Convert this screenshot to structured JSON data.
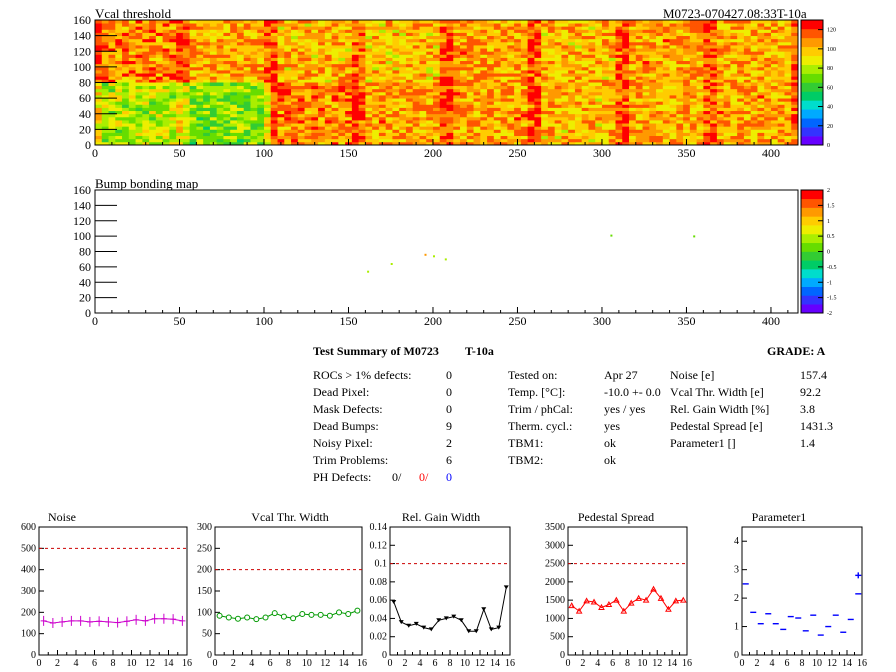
{
  "header": {
    "map1_title": "Vcal threshold",
    "module_id": "M0723-070427.08:33T-10a",
    "map2_title": "Bump bonding map"
  },
  "colors": {
    "bg": "#ffffff",
    "red": "#ff0000",
    "blue": "#0000ff",
    "magenta": "#cc00cc",
    "green": "#009900",
    "dashed": "#cc0000"
  },
  "summary": {
    "title": "Test Summary of M0723",
    "temp_code": "T-10a",
    "grade": "GRADE:  A",
    "left": [
      {
        "label": "ROCs > 1% defects:",
        "value": "0"
      },
      {
        "label": "Dead Pixel:",
        "value": "0"
      },
      {
        "label": "Mask Defects:",
        "value": "0"
      },
      {
        "label": "Dead Bumps:",
        "value": "9"
      },
      {
        "label": "Noisy Pixel:",
        "value": "2"
      },
      {
        "label": "Trim Problems:",
        "value": "6"
      }
    ],
    "ph_label": "PH Defects:",
    "ph_values": [
      "0/",
      "0/",
      "0"
    ],
    "middle": [
      {
        "label": "Tested on:",
        "value": "Apr 27"
      },
      {
        "label": "Temp. [°C]:",
        "value": "-10.0 +- 0.0"
      },
      {
        "label": "Trim / phCal:",
        "value": "yes / yes"
      },
      {
        "label": "Therm. cycl.:",
        "value": "yes"
      },
      {
        "label": "TBM1:",
        "value": "ok"
      },
      {
        "label": "TBM2:",
        "value": "ok"
      }
    ],
    "right": [
      {
        "label": "Noise [e]",
        "value": "157.4"
      },
      {
        "label": "Vcal Thr. Width [e]",
        "value": "92.2"
      },
      {
        "label": "Rel. Gain Width [%]",
        "value": "3.8"
      },
      {
        "label": "Pedestal Spread [e]",
        "value": "1431.3"
      },
      {
        "label": "Parameter1 []",
        "value": "1.4"
      }
    ]
  },
  "chart_data": [
    {
      "type": "heatmap",
      "title": "Vcal threshold",
      "xlim": [
        0,
        416
      ],
      "ylim": [
        0,
        160
      ],
      "xticks": [
        "0",
        "50",
        "100",
        "150",
        "200",
        "250",
        "300",
        "350",
        "400"
      ],
      "yticks": [
        "0",
        "20",
        "40",
        "60",
        "80",
        "100",
        "120",
        "140",
        "160"
      ],
      "zlim": [
        0,
        130
      ],
      "zticks": [
        "0",
        "20",
        "40",
        "60",
        "80",
        "100",
        "120"
      ],
      "roc_mean_top": [
        108,
        104,
        100,
        98,
        104,
        100,
        104,
        102
      ],
      "roc_mean_bottom": [
        80,
        72,
        108,
        104,
        104,
        100,
        102,
        104
      ]
    },
    {
      "type": "scatter",
      "title": "Bump bonding map",
      "xlim": [
        0,
        416
      ],
      "ylim": [
        0,
        160
      ],
      "xticks": [
        "0",
        "50",
        "100",
        "150",
        "200",
        "250",
        "300",
        "350",
        "400"
      ],
      "yticks": [
        "0",
        "20",
        "40",
        "60",
        "80",
        "100",
        "120",
        "140",
        "160"
      ],
      "zlim": [
        -2,
        2
      ],
      "zticks": [
        "2",
        "1.5",
        "1",
        "0.5",
        "0",
        "-0.5",
        "-1",
        "-1.5",
        "-2"
      ],
      "points": [
        {
          "x": 161,
          "y": 55,
          "z": 0.3
        },
        {
          "x": 175,
          "y": 65,
          "z": 0.3
        },
        {
          "x": 195,
          "y": 77,
          "z": 1.2
        },
        {
          "x": 200,
          "y": 75,
          "z": 0.4
        },
        {
          "x": 207,
          "y": 71,
          "z": 0.4
        },
        {
          "x": 305,
          "y": 102,
          "z": 0.0
        },
        {
          "x": 354,
          "y": 101,
          "z": 0.0
        }
      ]
    },
    {
      "type": "line",
      "title": "Noise",
      "x": [
        0,
        1,
        2,
        3,
        4,
        5,
        6,
        7,
        8,
        9,
        10,
        11,
        12,
        13,
        14,
        15
      ],
      "values": [
        160,
        150,
        155,
        160,
        160,
        155,
        158,
        155,
        152,
        158,
        165,
        160,
        170,
        170,
        168,
        160
      ],
      "ylim": [
        0,
        600
      ],
      "yticks": [
        "0",
        "100",
        "200",
        "300",
        "400",
        "500",
        "600"
      ],
      "xticks": [
        "0",
        "2",
        "4",
        "6",
        "8",
        "10",
        "12",
        "14",
        "16"
      ],
      "limit": 500,
      "color": "#cc00cc"
    },
    {
      "type": "line",
      "title": "Vcal Thr. Width",
      "x": [
        0,
        1,
        2,
        3,
        4,
        5,
        6,
        7,
        8,
        9,
        10,
        11,
        12,
        13,
        14,
        15
      ],
      "values": [
        92,
        88,
        85,
        88,
        84,
        88,
        98,
        90,
        86,
        96,
        94,
        94,
        92,
        100,
        96,
        104
      ],
      "ylim": [
        0,
        300
      ],
      "yticks": [
        "0",
        "50",
        "100",
        "150",
        "200",
        "250",
        "300"
      ],
      "xticks": [
        "0",
        "2",
        "4",
        "6",
        "8",
        "10",
        "12",
        "14",
        "16"
      ],
      "limit": 200,
      "color": "#009900"
    },
    {
      "type": "line",
      "title": "Rel. Gain Width",
      "x": [
        0,
        1,
        2,
        3,
        4,
        5,
        6,
        7,
        8,
        9,
        10,
        11,
        12,
        13,
        14,
        15
      ],
      "values": [
        0.058,
        0.036,
        0.032,
        0.034,
        0.03,
        0.028,
        0.038,
        0.04,
        0.042,
        0.038,
        0.026,
        0.026,
        0.05,
        0.028,
        0.03,
        0.074
      ],
      "ylim": [
        0,
        0.14
      ],
      "yticks": [
        "0",
        "0.02",
        "0.04",
        "0.06",
        "0.08",
        "0.1",
        "0.12",
        "0.14"
      ],
      "xticks": [
        "0",
        "2",
        "4",
        "6",
        "8",
        "10",
        "12",
        "14",
        "16"
      ],
      "limit": 0.1,
      "color": "#000000"
    },
    {
      "type": "line",
      "title": "Pedestal Spread",
      "x": [
        0,
        1,
        2,
        3,
        4,
        5,
        6,
        7,
        8,
        9,
        10,
        11,
        12,
        13,
        14,
        15
      ],
      "values": [
        1350,
        1200,
        1480,
        1450,
        1300,
        1380,
        1500,
        1200,
        1420,
        1550,
        1500,
        1800,
        1550,
        1250,
        1480,
        1500
      ],
      "ylim": [
        0,
        3500
      ],
      "yticks": [
        "0",
        "500",
        "1000",
        "1500",
        "2000",
        "2500",
        "3000",
        "3500"
      ],
      "xticks": [
        "0",
        "2",
        "4",
        "6",
        "8",
        "10",
        "12",
        "14",
        "16"
      ],
      "limit": 2500,
      "color": "#ff0000"
    },
    {
      "type": "scatter",
      "title": "Parameter1",
      "x": [
        0,
        1,
        2,
        3,
        4,
        5,
        6,
        7,
        8,
        9,
        10,
        11,
        12,
        13,
        14,
        15
      ],
      "values": [
        2.5,
        1.5,
        1.1,
        1.45,
        1.1,
        0.9,
        1.35,
        1.3,
        0.85,
        1.4,
        0.7,
        1.0,
        1.4,
        0.8,
        1.25,
        2.15
      ],
      "extra_point": {
        "x": 15.5,
        "y": 2.8
      },
      "ylim": [
        0,
        4.5
      ],
      "yticks": [
        "0",
        "1",
        "2",
        "3",
        "4"
      ],
      "xticks": [
        "0",
        "2",
        "4",
        "6",
        "8",
        "10",
        "12",
        "14",
        "16"
      ],
      "color": "#0000ff"
    }
  ]
}
